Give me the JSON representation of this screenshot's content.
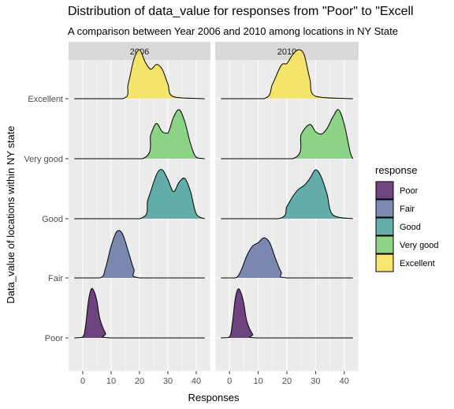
{
  "title": "Distribution of data_value for responses from \"Poor\" to \"Excell",
  "subtitle": "A comparison between Year 2006 and 2010 among locations in NY State",
  "colors": {
    "panel_bg": "#EBEBEB",
    "strip_bg": "#D9D9D9",
    "grid": "#FFFFFF",
    "Poor": "#5B2C6F",
    "Fair": "#6A7AA6",
    "Good": "#4FA4A0",
    "Very good": "#7ECF7A",
    "Excellent": "#F5E35A"
  },
  "legend": {
    "title": "response",
    "items": [
      "Poor",
      "Fair",
      "Good",
      "Very good",
      "Excellent"
    ]
  },
  "chart_data": {
    "type": "ridgeline-density",
    "title": "Distribution of data_value for responses from \"Poor\" to \"Excell",
    "subtitle": "A comparison between Year 2006 and 2010 among locations in NY State",
    "xlabel": "Responses",
    "ylabel": "Data_value of locations within NY state",
    "xlim": [
      -5,
      45
    ],
    "x_ticks": [
      0,
      10,
      20,
      30,
      40
    ],
    "y_categories": [
      "Poor",
      "Fair",
      "Good",
      "Very good",
      "Excellent"
    ],
    "facets": [
      "2006",
      "2010"
    ],
    "legend_position": "right",
    "grid": true,
    "series": [
      {
        "facet": "2006",
        "response": "Poor",
        "x": [
          -3,
          0,
          1,
          2,
          3,
          4,
          5,
          6,
          8,
          10,
          43
        ],
        "density": [
          0,
          0.02,
          0.25,
          0.75,
          1.0,
          0.95,
          0.75,
          0.4,
          0.1,
          0,
          0
        ]
      },
      {
        "facet": "2006",
        "response": "Fair",
        "x": [
          -3,
          6,
          8,
          10,
          12,
          14,
          16,
          18,
          20,
          43
        ],
        "density": [
          0,
          0,
          0.2,
          0.65,
          0.95,
          0.9,
          0.55,
          0.18,
          0,
          0
        ]
      },
      {
        "facet": "2006",
        "response": "Good",
        "x": [
          -3,
          20,
          23,
          26,
          28,
          30,
          32,
          34,
          36,
          38,
          40,
          43
        ],
        "density": [
          0,
          0,
          0.4,
          0.9,
          1.0,
          0.8,
          0.55,
          0.75,
          0.82,
          0.55,
          0.1,
          0
        ]
      },
      {
        "facet": "2006",
        "response": "Very good",
        "x": [
          -3,
          21,
          24,
          26,
          28,
          30,
          32,
          34,
          36,
          38,
          40,
          43
        ],
        "density": [
          0,
          0,
          0.5,
          0.72,
          0.55,
          0.52,
          0.85,
          1.0,
          0.75,
          0.3,
          0.03,
          0
        ]
      },
      {
        "facet": "2006",
        "response": "Excellent",
        "x": [
          -3,
          14,
          16,
          18,
          20,
          22,
          24,
          26,
          28,
          30,
          32,
          43
        ],
        "density": [
          0,
          0,
          0.3,
          0.8,
          1.0,
          0.75,
          0.6,
          0.7,
          0.6,
          0.3,
          0.04,
          0
        ]
      },
      {
        "facet": "2010",
        "response": "Poor",
        "x": [
          -3,
          0,
          1,
          2,
          3,
          4,
          5,
          6,
          8,
          10,
          43
        ],
        "density": [
          0,
          0.02,
          0.3,
          0.8,
          1.0,
          0.92,
          0.7,
          0.35,
          0.08,
          0,
          0
        ]
      },
      {
        "facet": "2010",
        "response": "Fair",
        "x": [
          -3,
          2,
          4,
          6,
          8,
          10,
          12,
          14,
          16,
          18,
          20,
          43
        ],
        "density": [
          0,
          0,
          0.15,
          0.45,
          0.65,
          0.72,
          0.82,
          0.72,
          0.4,
          0.12,
          0,
          0
        ]
      },
      {
        "facet": "2010",
        "response": "Good",
        "x": [
          -3,
          17,
          20,
          22,
          24,
          26,
          28,
          30,
          32,
          34,
          36,
          43
        ],
        "density": [
          0,
          0,
          0.25,
          0.45,
          0.6,
          0.68,
          0.82,
          1.0,
          0.85,
          0.5,
          0.08,
          0
        ]
      },
      {
        "facet": "2010",
        "response": "Very good",
        "x": [
          -3,
          22,
          25,
          28,
          30,
          32,
          34,
          36,
          38,
          40,
          42,
          43
        ],
        "density": [
          0,
          0,
          0.5,
          0.7,
          0.55,
          0.5,
          0.62,
          0.85,
          1.0,
          0.7,
          0.15,
          0
        ]
      },
      {
        "facet": "2010",
        "response": "Excellent",
        "x": [
          -3,
          12,
          15,
          18,
          20,
          22,
          24,
          26,
          28,
          30,
          43
        ],
        "density": [
          0,
          0,
          0.3,
          0.68,
          0.72,
          0.9,
          1.0,
          0.9,
          0.4,
          0.05,
          0
        ]
      }
    ]
  }
}
